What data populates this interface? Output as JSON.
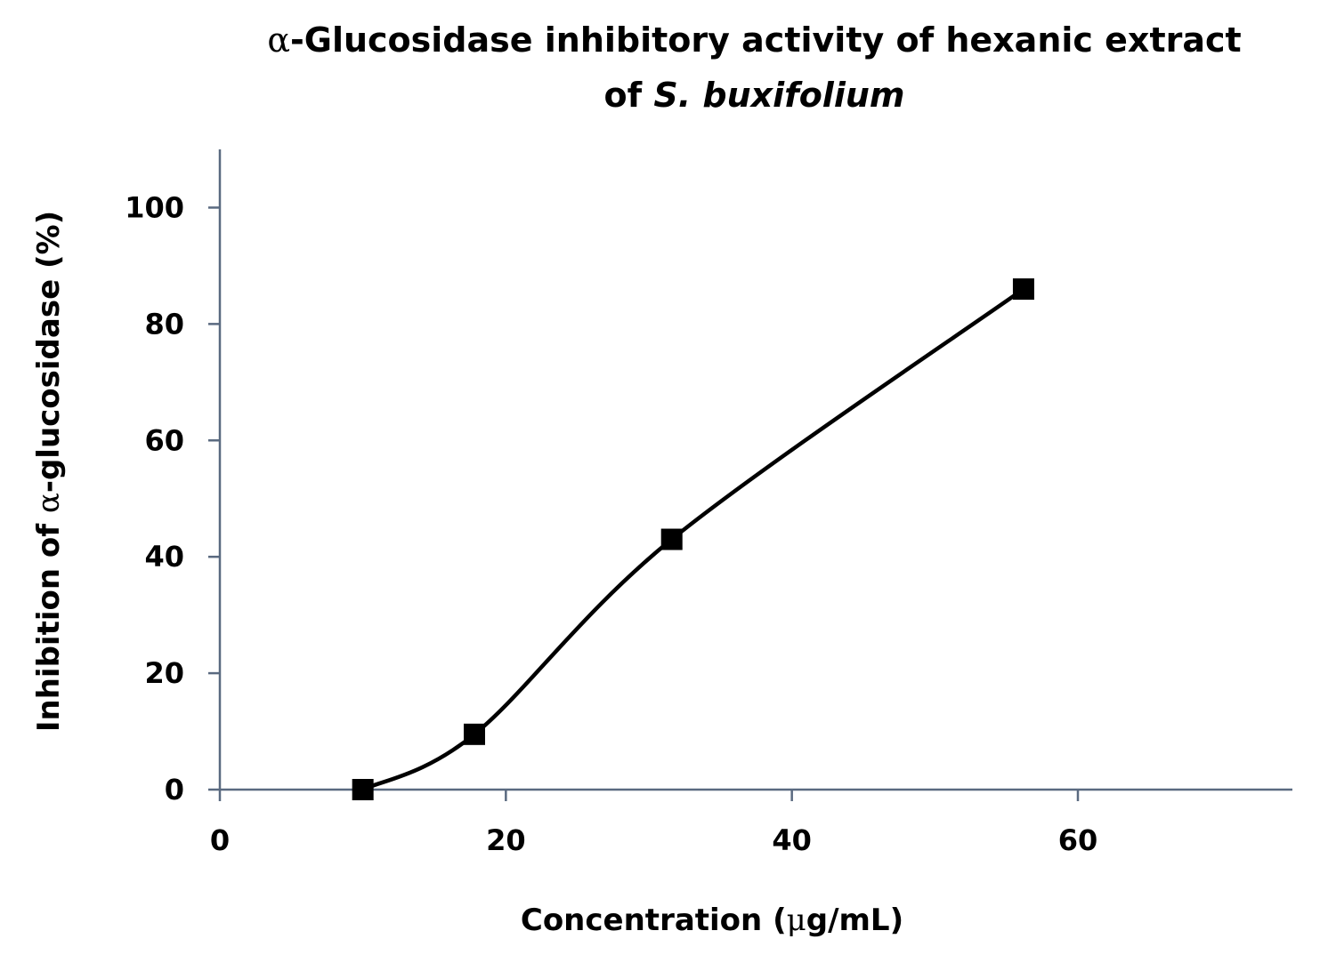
{
  "chart_data": {
    "type": "line",
    "title": {
      "line1_symbol": "α",
      "line1_text": "-Glucosidase inhibitory activity of hexanic extract",
      "line2_prefix": "of ",
      "line2_species": "S. buxifolium"
    },
    "xlabel": {
      "prefix": "Concentration (",
      "symbol": "μ",
      "suffix": "g/mL)"
    },
    "ylabel": {
      "prefix": "Inhibition of ",
      "symbol": "α",
      "suffix": "-glucosidase (%)"
    },
    "xlim": [
      0,
      75
    ],
    "ylim": [
      0,
      110
    ],
    "xticks": [
      0,
      20,
      40,
      60
    ],
    "yticks": [
      0,
      20,
      40,
      60,
      80,
      100
    ],
    "smooth": true,
    "marker": "square",
    "grid": false,
    "legend": "none",
    "series": [
      {
        "x": [
          10,
          17.8,
          31.6,
          56.2
        ],
        "y": [
          0,
          9.5,
          43,
          86
        ]
      }
    ],
    "colors": {
      "line": "#000000",
      "marker": "#000000",
      "axis": "#5a6a80"
    }
  }
}
